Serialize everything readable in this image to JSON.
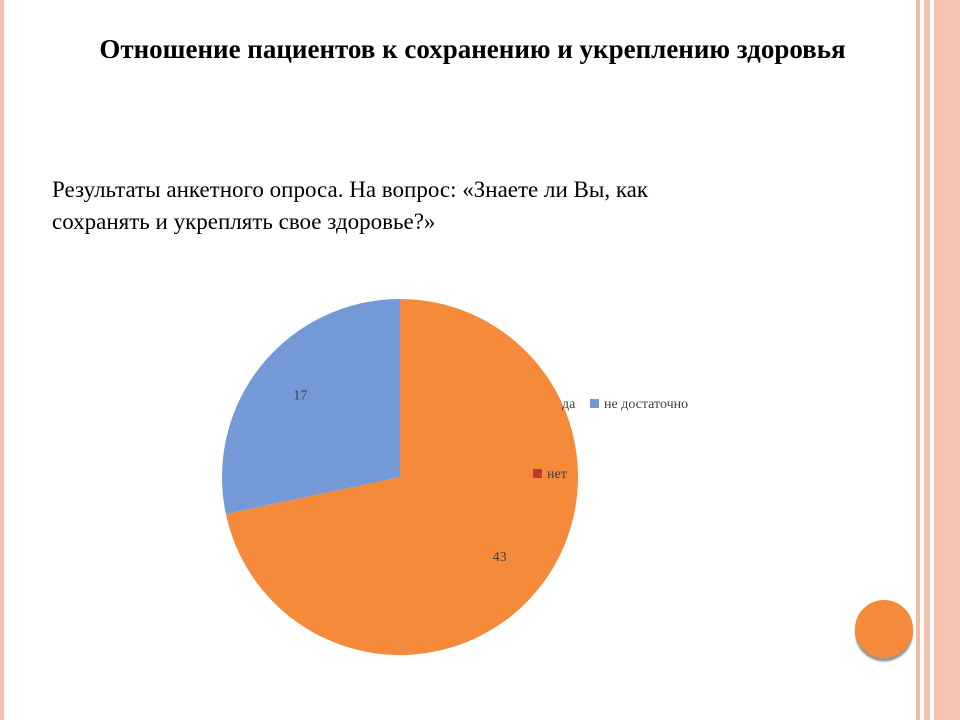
{
  "slide": {
    "title": "Отношение пациентов к сохранению и укреплению здоровья",
    "subtitle": "Результаты анкетного опроса. На вопрос: «Знаете ли Вы, как сохранять и укреплять свое здоровье?»"
  },
  "chart_data": {
    "type": "pie",
    "title": "",
    "categories": [
      "да",
      "нет",
      "не достаточно"
    ],
    "values": [
      43,
      0,
      17
    ],
    "data_labels": [
      "43",
      "",
      "17"
    ],
    "colors": [
      "#f58a3a",
      "#c0392b",
      "#7399d6"
    ],
    "legend": {
      "placement": "right",
      "entries": [
        "да",
        "не достаточно",
        "нет"
      ],
      "entry_colors": [
        "#f58a3a",
        "#7399d6",
        "#c0392b"
      ]
    }
  },
  "theme": {
    "accent": "#f58a3a",
    "border_color": "#f5c4b0"
  }
}
